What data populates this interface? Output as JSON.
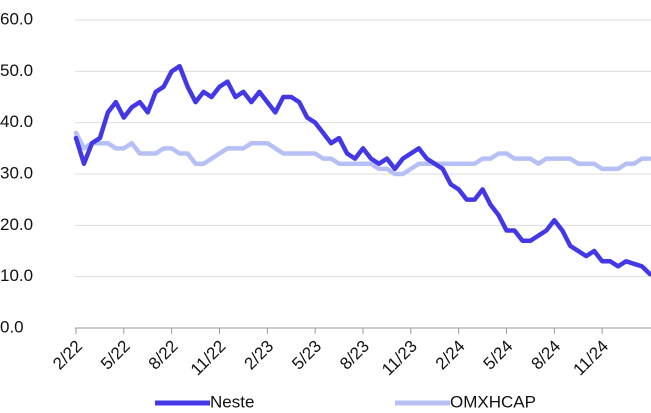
{
  "chart_data": {
    "type": "line",
    "categories": [
      "2/22",
      null,
      null,
      null,
      null,
      null,
      "5/22",
      null,
      null,
      null,
      null,
      null,
      "8/22",
      null,
      null,
      null,
      null,
      null,
      "11/22",
      null,
      null,
      null,
      null,
      null,
      "2/23",
      null,
      null,
      null,
      null,
      null,
      "5/23",
      null,
      null,
      null,
      null,
      null,
      "8/23",
      null,
      null,
      null,
      null,
      null,
      "11/23",
      null,
      null,
      null,
      null,
      null,
      "2/24",
      null,
      null,
      null,
      null,
      null,
      "5/24",
      null,
      null,
      null,
      null,
      null,
      "8/24",
      null,
      null,
      null,
      null,
      null,
      "11/24",
      null,
      null,
      null,
      null,
      null,
      null
    ],
    "series": [
      {
        "name": "Neste",
        "color": "#4338e6",
        "values": [
          37,
          32,
          36,
          37,
          42,
          44,
          41,
          43,
          44,
          42,
          46,
          47,
          50,
          51,
          47,
          44,
          46,
          45,
          47,
          48,
          45,
          46,
          44,
          46,
          44,
          42,
          45,
          45,
          44,
          41,
          40,
          38,
          36,
          37,
          34,
          33,
          35,
          33,
          32,
          33,
          31,
          33,
          34,
          35,
          33,
          32,
          31,
          28,
          27,
          25,
          25,
          27,
          24,
          22,
          19,
          19,
          17,
          17,
          18,
          19,
          21,
          19,
          16,
          15,
          14,
          15,
          13,
          13,
          12,
          13,
          12.5,
          12,
          10.5
        ]
      },
      {
        "name": "OMXHCAP",
        "color": "#b7c0f6",
        "values": [
          38,
          35,
          36,
          36,
          36,
          35,
          35,
          36,
          34,
          34,
          34,
          35,
          35,
          34,
          34,
          32,
          32,
          33,
          34,
          35,
          35,
          35,
          36,
          36,
          36,
          35,
          34,
          34,
          34,
          34,
          34,
          33,
          33,
          32,
          32,
          32,
          32,
          32,
          31,
          31,
          30,
          30,
          31,
          32,
          32,
          32,
          32,
          32,
          32,
          32,
          32,
          33,
          33,
          34,
          34,
          33,
          33,
          33,
          32,
          33,
          33,
          33,
          33,
          32,
          32,
          32,
          31,
          31,
          31,
          32,
          32,
          33,
          33
        ]
      }
    ],
    "ylim": [
      0,
      60
    ],
    "yticks": [
      {
        "value": 0,
        "label": "0.0"
      },
      {
        "value": 10,
        "label": "10.0"
      },
      {
        "value": 20,
        "label": "20.0"
      },
      {
        "value": 30,
        "label": "30.0"
      },
      {
        "value": 40,
        "label": "40.0"
      },
      {
        "value": 50,
        "label": "50.0"
      },
      {
        "value": 60,
        "label": "60.0"
      }
    ],
    "grid": true
  }
}
